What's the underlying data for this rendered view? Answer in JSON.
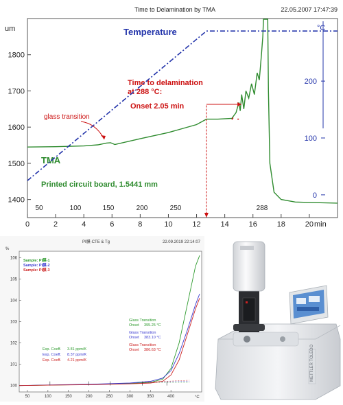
{
  "top_chart": {
    "title": "Time to Delamination by TMA",
    "timestamp": "22.05.2007 17:47:39",
    "left_axis_unit": "um",
    "right_axis_unit": "°C",
    "x_unit": "min",
    "temperature_label": "Temperature",
    "tma_label": "TMA",
    "sample_label": "Printed circuit board, 1.5441 mm",
    "glass_transition_label": "glass transition",
    "delam_line1": "Time to delamination",
    "delam_line2": "at 288 °C:",
    "onset_label": "Onset   2.05 min",
    "temp_axis_ticks": [
      "50",
      "100",
      "150",
      "200",
      "250",
      "288"
    ],
    "colors": {
      "tma": "#2e8b2e",
      "temperature": "#2233aa",
      "annotation": "#cc1111"
    }
  },
  "chart_data": [
    {
      "type": "line",
      "title": "Time to Delamination by TMA",
      "xlabel": "min",
      "ylabel": "um",
      "xlim": [
        0,
        22
      ],
      "ylim": [
        1350,
        1900
      ],
      "y2lim": [
        -40,
        310
      ],
      "x_ticks": [
        0,
        2,
        4,
        6,
        8,
        10,
        12,
        14,
        16,
        18,
        20
      ],
      "y_ticks": [
        1400,
        1500,
        1600,
        1700,
        1800
      ],
      "y2_ticks": [
        0,
        100,
        200
      ],
      "grid": false,
      "series": [
        {
          "name": "TMA",
          "color": "#2e8b2e",
          "x": [
            0,
            2,
            4,
            5,
            5.6,
            5.9,
            6.2,
            8,
            10,
            12,
            12.7,
            13.5,
            14.5,
            14.8,
            15.0,
            15.1,
            15.2,
            15.35,
            15.5,
            15.7,
            15.9,
            16.1,
            16.3,
            16.45,
            16.6,
            16.7,
            16.75,
            17.05,
            17.1,
            17.2,
            17.5,
            18,
            19,
            20,
            22
          ],
          "y": [
            1545,
            1546,
            1548,
            1551,
            1556,
            1557,
            1552,
            1568,
            1585,
            1607,
            1622,
            1622,
            1624,
            1640,
            1668,
            1645,
            1690,
            1650,
            1700,
            1680,
            1720,
            1690,
            1750,
            1730,
            1800,
            1850,
            1905,
            1905,
            1700,
            1500,
            1420,
            1400,
            1393,
            1392,
            1390
          ]
        },
        {
          "name": "Temperature",
          "color": "#2233aa",
          "dashed": true,
          "axis": "right",
          "x": [
            0,
            12.7,
            22
          ],
          "y": [
            25,
            288,
            288
          ]
        }
      ]
    },
    {
      "type": "line",
      "title": "PI膜-CTE & Tg",
      "timestamp": "22.09.2019 22:14:07",
      "ylabel": "%",
      "xlabel": "°C",
      "xlim": [
        30,
        475
      ],
      "ylim": [
        99.7,
        106.3
      ],
      "x_ticks": [
        50,
        100,
        150,
        200,
        250,
        300,
        350,
        400
      ],
      "y_ticks": [
        100,
        101,
        102,
        103,
        104,
        105,
        106
      ],
      "grid": false,
      "series": [
        {
          "name": "Sample: PI膜-1",
          "color": "#2c9a2c",
          "x": [
            30,
            100,
            200,
            300,
            350,
            380,
            400,
            420,
            440,
            460,
            470
          ],
          "y": [
            100.0,
            100.02,
            100.05,
            100.1,
            100.15,
            100.3,
            100.8,
            102.0,
            103.8,
            105.6,
            106.1
          ]
        },
        {
          "name": "Sample: PI膜-2",
          "color": "#3a3ad0",
          "x": [
            30,
            100,
            200,
            300,
            350,
            380,
            400,
            420,
            440,
            460,
            470
          ],
          "y": [
            100.0,
            100.03,
            100.06,
            100.12,
            100.2,
            100.35,
            100.7,
            101.5,
            102.6,
            103.8,
            104.3
          ]
        },
        {
          "name": "Sample: PI膜-3",
          "color": "#cc2222",
          "x": [
            30,
            100,
            200,
            300,
            350,
            380,
            400,
            420,
            440,
            460,
            470
          ],
          "y": [
            100.0,
            100.02,
            100.04,
            100.08,
            100.12,
            100.2,
            100.5,
            101.2,
            102.4,
            103.6,
            104.1
          ]
        }
      ],
      "annotations": {
        "exp_coeff": [
          {
            "label": "Exp. Coeff.",
            "value": "3.81 ppm/K",
            "color": "#2c9a2c"
          },
          {
            "label": "Exp. Coeff.",
            "value": "8.37 ppm/K",
            "color": "#3a3ad0"
          },
          {
            "label": "Exp. Coeff.",
            "value": "4.21 ppm/K",
            "color": "#cc2222"
          }
        ],
        "glass_transition": [
          {
            "title": "Glass Transition",
            "onset_label": "Onset",
            "onset_value": "395.25 °C",
            "color": "#2c9a2c"
          },
          {
            "title": "Glass Transition",
            "onset_label": "Onset",
            "onset_value": "383.10 °C",
            "color": "#3a3ad0"
          },
          {
            "title": "Glass Transition",
            "onset_label": "Onset",
            "onset_value": "386.63 °C",
            "color": "#cc2222"
          }
        ]
      }
    }
  ],
  "instrument": {
    "brand": "METTLER TOLEDO",
    "colors": {
      "body": "#e9ebee",
      "dark": "#2b2d31",
      "screen": "#5a8fd1"
    }
  }
}
